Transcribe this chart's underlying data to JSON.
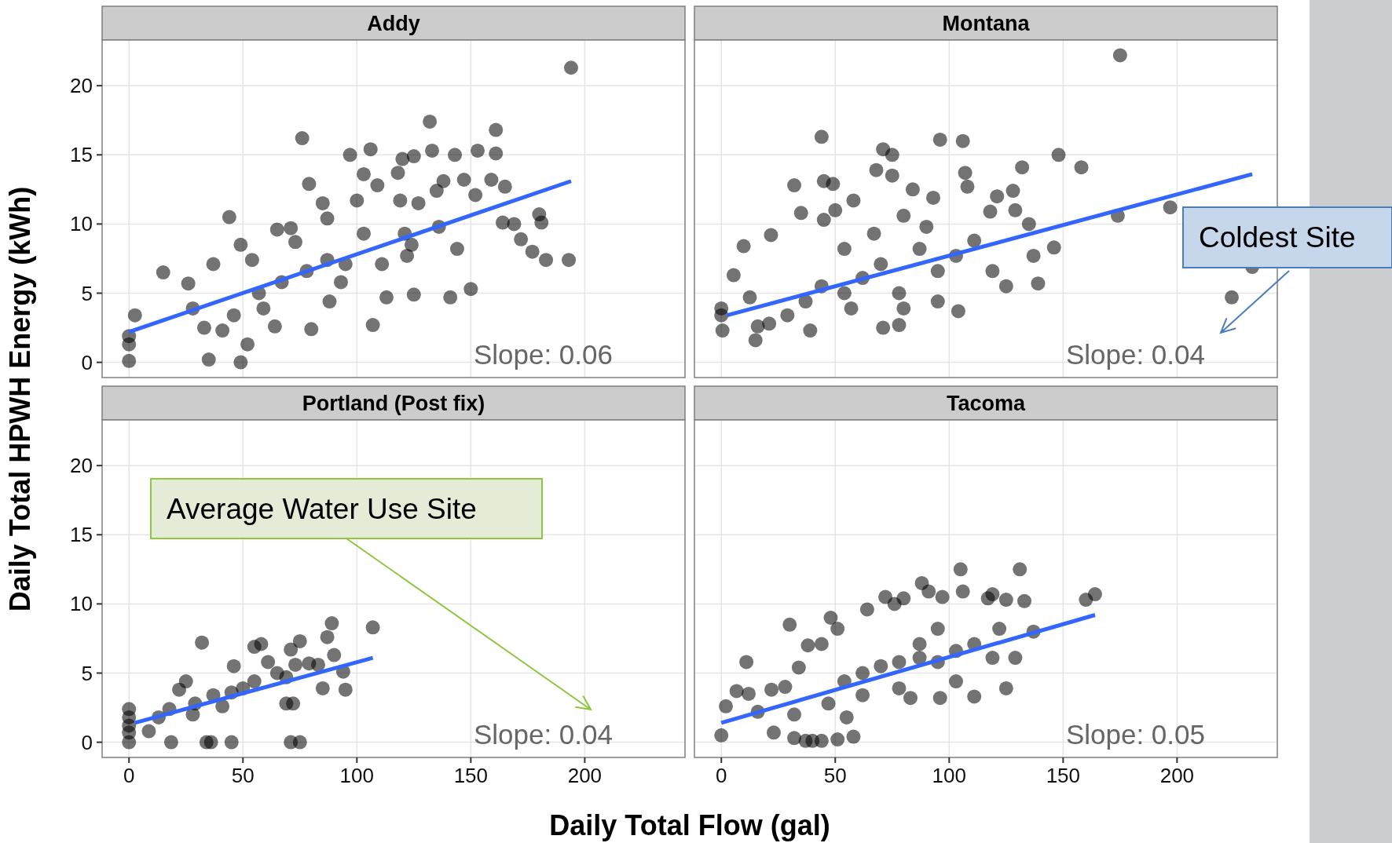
{
  "chart_data": [
    {
      "type": "scatter",
      "title": "Addy",
      "ylabel": "Daily Total HPWH Energy (kWh)",
      "xlim": [
        -11.8,
        244
      ],
      "ylim": [
        -1.1,
        23.3
      ],
      "xticks": [
        0,
        50,
        100,
        150,
        200
      ],
      "yticks": [
        0,
        5,
        10,
        15,
        20
      ],
      "grid": true,
      "tick_labels": "y",
      "annotations": [
        "Slope: 0.06"
      ],
      "series": [
        {
          "color": "#000000",
          "marker": "circle",
          "x": [
            0,
            0,
            0,
            2.6,
            15,
            26,
            28,
            33,
            35,
            37,
            44,
            49,
            49,
            52,
            54,
            59,
            65,
            71,
            73,
            76,
            79,
            80,
            85,
            87,
            88,
            93,
            97,
            100,
            103,
            106,
            107,
            109,
            113,
            118,
            120,
            121,
            124,
            125,
            125,
            132,
            133,
            135,
            138,
            141,
            143,
            147,
            150,
            152,
            153,
            159,
            161,
            161,
            164,
            165,
            169,
            172,
            177,
            180,
            181,
            183,
            193,
            194,
            87,
            103,
            95,
            78,
            67,
            57,
            119,
            127,
            136,
            111,
            122,
            144,
            46,
            41,
            64
          ],
          "values": [
            0.1,
            1.3,
            1.9,
            3.4,
            6.5,
            5.7,
            3.9,
            2.5,
            0.2,
            7.1,
            10.5,
            8.5,
            0,
            1.3,
            7.4,
            3.9,
            9.6,
            9.7,
            8.7,
            16.2,
            12.9,
            2.4,
            11.5,
            7.4,
            4.4,
            5.8,
            15,
            11.7,
            13.6,
            15.4,
            2.7,
            12.8,
            4.7,
            13.7,
            14.7,
            9.3,
            8.5,
            14.9,
            4.9,
            17.4,
            15.3,
            12.4,
            13.1,
            4.7,
            15,
            13.2,
            5.3,
            12.1,
            15.3,
            13.2,
            16.8,
            15.1,
            10.1,
            12.7,
            10,
            8.9,
            8,
            10.7,
            10.1,
            7.4,
            7.4,
            21.3,
            10.4,
            9.3,
            7.1,
            6.6,
            5.8,
            5,
            11.7,
            11.5,
            9.8,
            7.1,
            7.7,
            8.2,
            3.4,
            2.3,
            2.6
          ]
        },
        {
          "type": "line",
          "color": "#3366ff",
          "x": [
            0,
            194
          ],
          "values": [
            2.2,
            13.1
          ]
        }
      ]
    },
    {
      "type": "scatter",
      "title": "Montana",
      "xlim": [
        -11.8,
        244
      ],
      "ylim": [
        -1.1,
        23.3
      ],
      "xticks": [
        0,
        50,
        100,
        150,
        200
      ],
      "yticks": [
        0,
        5,
        10,
        15,
        20
      ],
      "grid": true,
      "tick_labels": false,
      "annotations": [
        "Slope: 0.04",
        "Coldest Site"
      ],
      "series": [
        {
          "color": "#000000",
          "marker": "circle",
          "x": [
            0,
            0,
            0.5,
            5.4,
            9.8,
            12.5,
            15,
            21.8,
            32,
            35,
            44,
            45,
            49,
            50,
            45,
            58,
            68,
            71,
            75,
            75,
            71,
            78,
            84,
            93,
            96,
            106,
            107,
            108,
            104,
            118,
            121,
            128,
            129,
            132,
            135,
            139,
            137,
            146,
            148,
            158,
            174,
            175,
            197,
            224,
            233,
            21,
            29,
            37,
            44,
            54,
            62,
            70,
            78,
            87,
            95,
            103,
            111,
            16,
            39,
            57,
            80,
            95,
            119,
            125,
            54,
            67,
            80,
            90
          ],
          "values": [
            3.4,
            3.9,
            2.3,
            6.3,
            8.4,
            4.7,
            1.6,
            9.2,
            12.8,
            10.8,
            16.3,
            13.1,
            12.9,
            11,
            10.3,
            11.7,
            13.9,
            15.4,
            15,
            13.5,
            2.5,
            2.7,
            12.5,
            11.9,
            16.1,
            16,
            13.7,
            12.7,
            3.7,
            10.9,
            12,
            12.4,
            11,
            14.1,
            10,
            5.7,
            7.7,
            8.3,
            15,
            14.1,
            10.6,
            22.2,
            11.2,
            4.7,
            6.9,
            2.8,
            3.4,
            4.4,
            5.5,
            5,
            6.1,
            7.1,
            5,
            8.2,
            6.6,
            7.7,
            8.8,
            2.6,
            2.3,
            3.9,
            3.9,
            4.4,
            6.6,
            5.5,
            8.2,
            9.3,
            10.6,
            9.8
          ]
        },
        {
          "type": "line",
          "color": "#3366ff",
          "x": [
            2.6,
            233
          ],
          "values": [
            3.4,
            13.6
          ]
        }
      ]
    },
    {
      "type": "scatter",
      "title": "Portland (Post fix)",
      "xlabel": "Daily Total Flow (gal)",
      "xlim": [
        -11.8,
        244
      ],
      "ylim": [
        -1.1,
        23.3
      ],
      "xticks": [
        0,
        50,
        100,
        150,
        200
      ],
      "yticks": [
        0,
        5,
        10,
        15,
        20
      ],
      "grid": true,
      "annotations": [
        "Slope: 0.04",
        "Average Water Use Site"
      ],
      "series": [
        {
          "color": "#000000",
          "marker": "circle",
          "x": [
            0,
            0,
            0,
            0,
            0,
            8.7,
            18.5,
            34,
            36,
            45,
            71,
            75,
            32,
            22,
            25,
            17.7,
            29,
            37,
            45,
            46,
            55,
            55,
            58,
            61,
            69,
            69,
            72,
            71,
            73,
            75,
            79,
            83,
            85,
            87,
            89,
            90,
            94,
            95,
            107,
            13,
            41,
            50,
            28,
            65
          ],
          "values": [
            0,
            0.7,
            1.2,
            1.8,
            2.4,
            0.8,
            0,
            0,
            0,
            0,
            0,
            0,
            7.2,
            3.8,
            4.4,
            2.4,
            2.8,
            3.4,
            3.6,
            5.5,
            4.4,
            6.9,
            7.1,
            5.8,
            4.7,
            2.8,
            2.8,
            6.7,
            5.6,
            7.3,
            5.7,
            5.6,
            3.9,
            7.6,
            8.6,
            6.3,
            5.1,
            3.8,
            8.3,
            1.8,
            2.6,
            3.9,
            2,
            5
          ]
        },
        {
          "type": "line",
          "color": "#3366ff",
          "x": [
            2.6,
            107
          ],
          "values": [
            1.4,
            6.1
          ]
        }
      ]
    },
    {
      "type": "scatter",
      "title": "Tacoma",
      "xlim": [
        -11.8,
        244
      ],
      "ylim": [
        -1.1,
        23.3
      ],
      "xticks": [
        0,
        50,
        100,
        150,
        200
      ],
      "yticks": [
        0,
        5,
        10,
        15,
        20
      ],
      "grid": true,
      "tick_labels": "x",
      "annotations": [
        "Slope: 0.05"
      ],
      "series": [
        {
          "color": "#000000",
          "marker": "circle",
          "x": [
            0,
            2,
            6.7,
            11,
            12,
            16,
            22,
            23,
            28,
            30,
            32,
            34,
            32,
            37,
            40,
            44,
            38,
            44,
            48,
            51,
            55,
            58,
            51,
            64,
            72,
            76,
            80,
            83,
            88,
            91,
            97,
            96,
            105,
            106,
            111,
            117,
            119,
            125,
            125,
            129,
            131,
            133,
            137,
            160,
            164,
            54,
            62,
            70,
            78,
            87,
            95,
            103,
            111,
            119,
            87,
            95,
            78,
            62,
            47,
            103,
            122
          ],
          "values": [
            0.5,
            2.6,
            3.7,
            5.8,
            3.5,
            2.2,
            3.8,
            0.7,
            4,
            8.5,
            2,
            5.4,
            0.3,
            0.1,
            0.1,
            0.1,
            7,
            7.1,
            9,
            0.2,
            1.8,
            0.4,
            8.2,
            9.6,
            10.5,
            10,
            10.4,
            3.2,
            11.5,
            10.9,
            10.5,
            3.2,
            12.5,
            10.9,
            3.3,
            10.4,
            10.7,
            3.9,
            10.3,
            6.1,
            12.5,
            10.2,
            8,
            10.3,
            10.7,
            4.4,
            5,
            5.5,
            5.8,
            6.1,
            5.8,
            6.6,
            7.1,
            6.1,
            7.1,
            8.2,
            3.9,
            3.4,
            2.8,
            4.4,
            8.2
          ]
        },
        {
          "type": "line",
          "color": "#3366ff",
          "x": [
            0,
            164
          ],
          "values": [
            1.4,
            9.2
          ]
        }
      ]
    }
  ]
}
